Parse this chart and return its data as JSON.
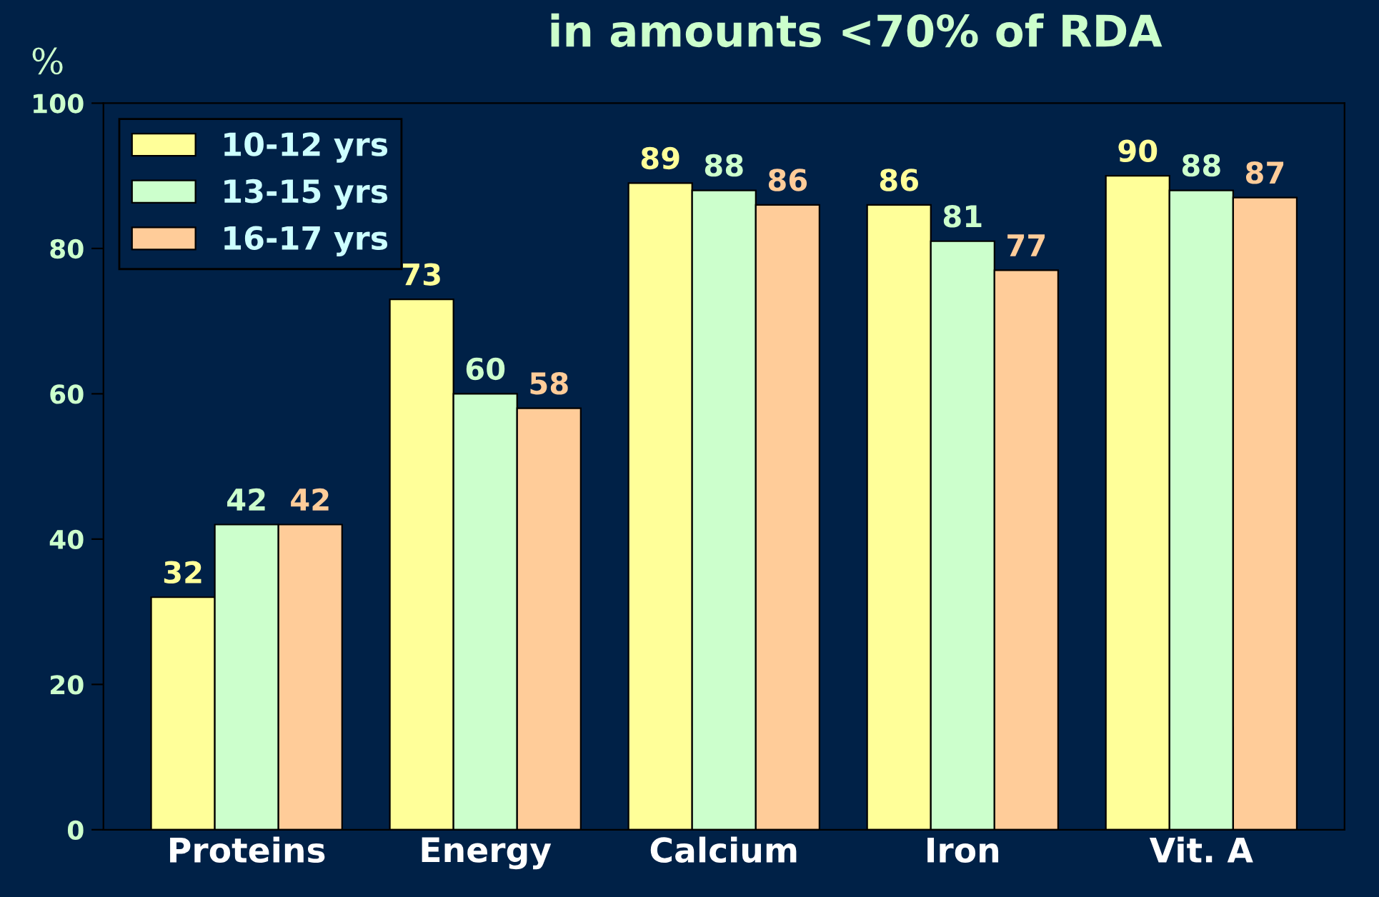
{
  "chart_data": {
    "type": "bar",
    "title": "in amounts <70% of RDA",
    "ylabel": "%",
    "categories": [
      "Proteins",
      "Energy",
      "Calcium",
      "Iron",
      "Vit. A"
    ],
    "series": [
      {
        "name": "10-12 yrs",
        "color": "#ffff99",
        "values": [
          32,
          73,
          89,
          86,
          90
        ]
      },
      {
        "name": "13-15 yrs",
        "color": "#ccffcc",
        "values": [
          42,
          60,
          88,
          81,
          88
        ]
      },
      {
        "name": "16-17 yrs",
        "color": "#ffcc99",
        "values": [
          42,
          58,
          86,
          77,
          87
        ]
      }
    ],
    "ylim": [
      0,
      100
    ],
    "yticks": [
      0,
      20,
      40,
      60,
      80,
      100
    ],
    "data_labels": true,
    "legend": "top left",
    "grid": false
  }
}
